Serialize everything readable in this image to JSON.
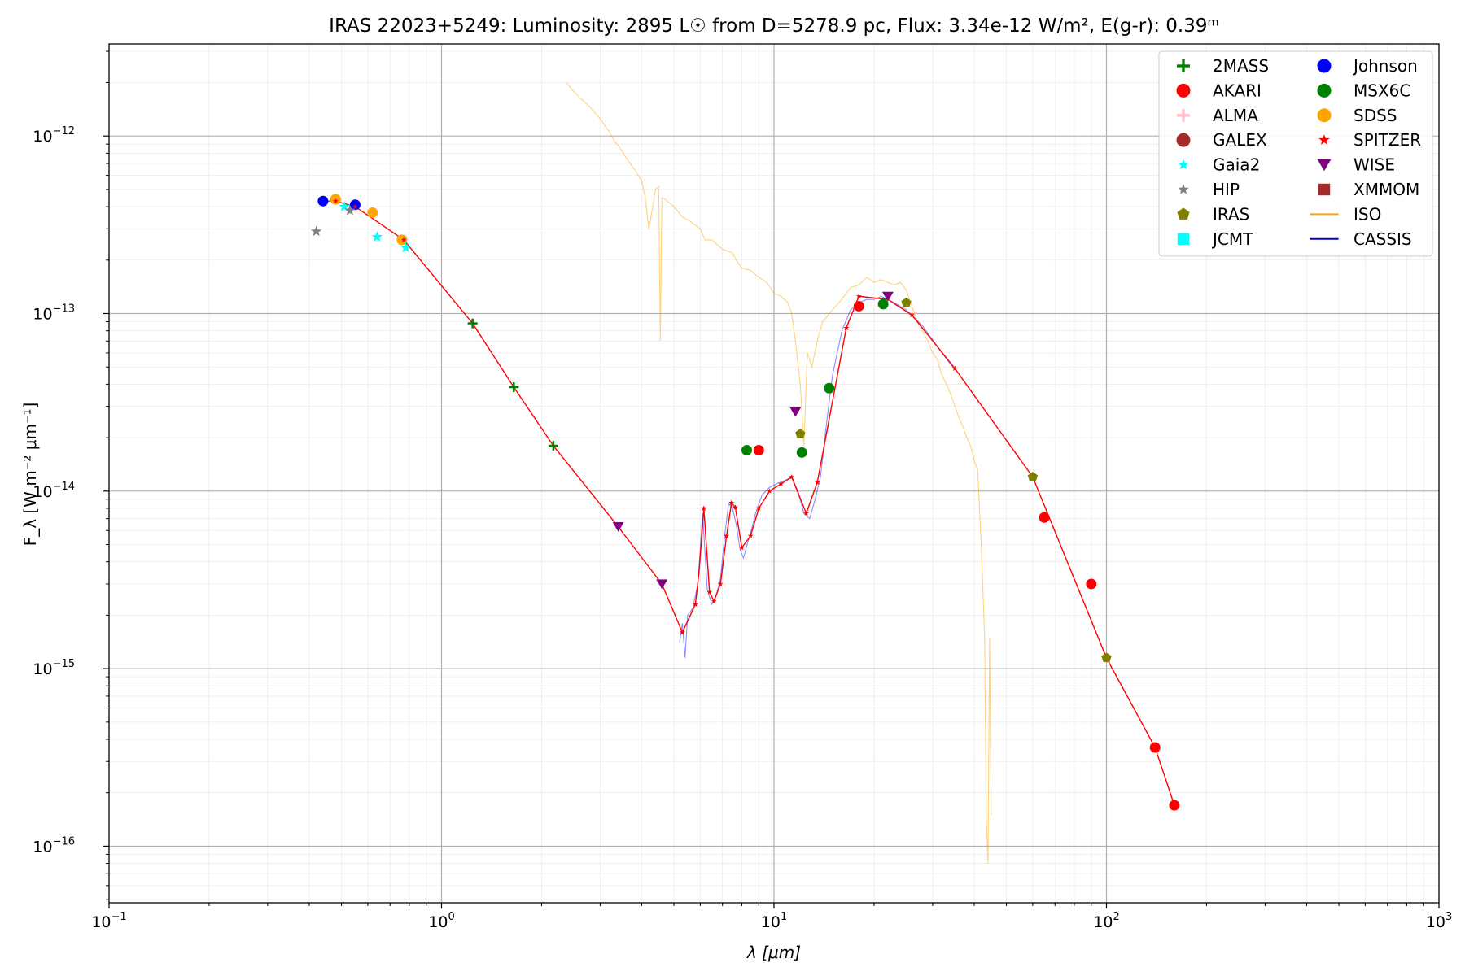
{
  "chart_data": {
    "type": "scatter",
    "title": "IRAS 22023+5249:  Luminosity: 2895 L☉ from D=5278.9 pc, Flux: 3.34e-12 W/m², E(g-r): 0.39ᵐ",
    "xlabel": "λ [μm]",
    "ylabel": "F_λ [W m⁻² μm⁻¹]",
    "xscale": "log",
    "yscale": "log",
    "xlim": [
      0.1,
      1000
    ],
    "ylim": [
      4.8e-17,
      3.3e-12
    ],
    "grid": true,
    "legend_position": "top-right",
    "xticks": [
      {
        "value": 0.1,
        "mantissa": "10",
        "exp": "−1"
      },
      {
        "value": 1,
        "mantissa": "10",
        "exp": "0"
      },
      {
        "value": 10,
        "mantissa": "10",
        "exp": "1"
      },
      {
        "value": 100,
        "mantissa": "10",
        "exp": "2"
      },
      {
        "value": 1000,
        "mantissa": "10",
        "exp": "3"
      }
    ],
    "yticks": [
      {
        "value": 1e-16,
        "mantissa": "10",
        "exp": "−16"
      },
      {
        "value": 1e-15,
        "mantissa": "10",
        "exp": "−15"
      },
      {
        "value": 1e-14,
        "mantissa": "10",
        "exp": "−14"
      },
      {
        "value": 1e-13,
        "mantissa": "10",
        "exp": "−13"
      },
      {
        "value": 1e-12,
        "mantissa": "10",
        "exp": "−12"
      }
    ],
    "legend": [
      {
        "name": "2MASS",
        "marker": "plus",
        "color": "#008000"
      },
      {
        "name": "Johnson",
        "marker": "circle",
        "color": "#0000ff"
      },
      {
        "name": "AKARI",
        "marker": "circle",
        "color": "#ff0000"
      },
      {
        "name": "MSX6C",
        "marker": "circle",
        "color": "#008000"
      },
      {
        "name": "ALMA",
        "marker": "plus",
        "color": "#ffc0cb"
      },
      {
        "name": "SDSS",
        "marker": "circle",
        "color": "#ffa500"
      },
      {
        "name": "GALEX",
        "marker": "circle",
        "color": "#a52a2a"
      },
      {
        "name": "SPITZER",
        "marker": "star",
        "color": "#ff0000"
      },
      {
        "name": "Gaia2",
        "marker": "star",
        "color": "#00ffff"
      },
      {
        "name": "WISE",
        "marker": "triangle_down",
        "color": "#800080"
      },
      {
        "name": "HIP",
        "marker": "star",
        "color": "#808080"
      },
      {
        "name": "XMMOM",
        "marker": "square",
        "color": "#a52a2a"
      },
      {
        "name": "IRAS",
        "marker": "pentagon",
        "color": "#808000"
      },
      {
        "name": "ISO",
        "marker": "line",
        "color": "#ffa500"
      },
      {
        "name": "JCMT",
        "marker": "square",
        "color": "#00ffff"
      },
      {
        "name": "CASSIS",
        "marker": "line",
        "color": "#0000cd"
      }
    ],
    "model_line": {
      "color": "#ff0000",
      "x": [
        0.44,
        0.48,
        0.55,
        0.77,
        1.24,
        1.65,
        2.17,
        3.4,
        4.6,
        5.3,
        5.8,
        5.95,
        6.15,
        6.4,
        6.6,
        6.9,
        7.2,
        7.45,
        7.65,
        8.0,
        8.5,
        9.0,
        9.7,
        10.5,
        11.3,
        12.5,
        13.5,
        16.5,
        18.0,
        22.0,
        26.0,
        35.0,
        60.0,
        100.0,
        140.0,
        160.0
      ],
      "y": [
        4.3e-13,
        4.3e-13,
        4e-13,
        2.6e-13,
        8.8e-14,
        3.85e-14,
        1.8e-14,
        6.3e-15,
        3e-15,
        1.6e-15,
        2.3e-15,
        3.5e-15,
        8e-15,
        2.7e-15,
        2.4e-15,
        3e-15,
        5.6e-15,
        8.6e-15,
        8.1e-15,
        4.8e-15,
        5.6e-15,
        8e-15,
        1e-14,
        1.1e-14,
        1.2e-14,
        7.5e-15,
        1.12e-14,
        8.3e-14,
        1.25e-13,
        1.2e-13,
        9.8e-14,
        4.9e-14,
        1.2e-14,
        1.15e-15,
        3.6e-16,
        1.7e-16
      ]
    },
    "spitzer_points": {
      "color": "#ff0000",
      "x": [
        0.48,
        0.55,
        0.77,
        5.3,
        5.8,
        6.15,
        6.4,
        6.6,
        6.9,
        7.2,
        7.45,
        7.65,
        8.0,
        8.5,
        9.0,
        9.7,
        10.5,
        11.3,
        12.5,
        13.5,
        16.5,
        18.0,
        26.0,
        35.0
      ],
      "y": [
        4.3e-13,
        4e-13,
        2.6e-13,
        1.6e-15,
        2.3e-15,
        8e-15,
        2.7e-15,
        2.4e-15,
        3e-15,
        5.6e-15,
        8.6e-15,
        8.1e-15,
        4.8e-15,
        5.6e-15,
        8e-15,
        1e-14,
        1.1e-14,
        1.2e-14,
        7.5e-15,
        1.12e-14,
        8.3e-14,
        1.25e-13,
        9.8e-14,
        4.9e-14
      ]
    },
    "photometry": [
      {
        "name": "2MASS",
        "marker": "plus",
        "color": "#008000",
        "x": [
          1.24,
          1.65,
          2.17
        ],
        "y": [
          8.8e-14,
          3.85e-14,
          1.8e-14
        ]
      },
      {
        "name": "Johnson",
        "marker": "circle",
        "color": "#0000ff",
        "x": [
          0.44,
          0.55
        ],
        "y": [
          4.3e-13,
          4.1e-13
        ]
      },
      {
        "name": "AKARI",
        "marker": "circle",
        "color": "#ff0000",
        "x": [
          9.0,
          18.0,
          65.0,
          90.0,
          140.0,
          160.0
        ],
        "y": [
          1.7e-14,
          1.1e-13,
          7.1e-15,
          3e-15,
          3.6e-16,
          1.7e-16
        ]
      },
      {
        "name": "MSX6C",
        "marker": "circle",
        "color": "#008000",
        "x": [
          8.28,
          12.13,
          14.65,
          21.3
        ],
        "y": [
          1.7e-14,
          1.65e-14,
          3.8e-14,
          1.13e-13
        ]
      },
      {
        "name": "SDSS",
        "marker": "circle",
        "color": "#ffa500",
        "x": [
          0.48,
          0.62,
          0.76
        ],
        "y": [
          4.4e-13,
          3.7e-13,
          2.6e-13
        ]
      },
      {
        "name": "Gaia2",
        "marker": "star",
        "color": "#00ffff",
        "x": [
          0.51,
          0.64,
          0.78
        ],
        "y": [
          4e-13,
          2.7e-13,
          2.35e-13
        ]
      },
      {
        "name": "HIP",
        "marker": "star",
        "color": "#808080",
        "x": [
          0.42,
          0.53
        ],
        "y": [
          2.9e-13,
          3.8e-13
        ]
      },
      {
        "name": "WISE",
        "marker": "triangle_down",
        "color": "#800080",
        "x": [
          3.4,
          4.6,
          11.6,
          22.0
        ],
        "y": [
          6.3e-15,
          3e-15,
          2.8e-14,
          1.25e-13
        ]
      },
      {
        "name": "IRAS",
        "marker": "pentagon",
        "color": "#808000",
        "x": [
          12.0,
          25.0,
          60.0,
          100.0
        ],
        "y": [
          2.1e-14,
          1.15e-13,
          1.2e-14,
          1.15e-15
        ]
      }
    ],
    "iso_spectrum": {
      "color": "#ffa500",
      "x": [
        2.38,
        2.45,
        2.6,
        2.8,
        3.0,
        3.2,
        3.3,
        3.45,
        3.6,
        3.8,
        4.0,
        4.1,
        4.2,
        4.3,
        4.4,
        4.5,
        4.55,
        4.6,
        4.7,
        5.0,
        5.3,
        5.6,
        6.0,
        6.2,
        6.5,
        7.0,
        7.5,
        7.7,
        8.0,
        8.5,
        9.0,
        9.5,
        10.0,
        10.5,
        11.0,
        11.3,
        11.6,
        12.0,
        12.3,
        12.6,
        13.0,
        13.5,
        14.0,
        15.0,
        16.0,
        17.0,
        18.0,
        19.0,
        20.0,
        21.0,
        22.0,
        23.0,
        24.0,
        25.0,
        26.0,
        27.0,
        28.0,
        29.0,
        30.0,
        31.0,
        32.0,
        33.0,
        34.0,
        35.0,
        36.0,
        37.0,
        38.0,
        39.0,
        40.0,
        41.0,
        42.0,
        43.0,
        43.5,
        44.0,
        44.5,
        45.0
      ],
      "y": [
        2e-12,
        1.85e-12,
        1.65e-12,
        1.45e-12,
        1.25e-12,
        1.05e-12,
        9.5e-13,
        8.5e-13,
        7.5e-13,
        6.5e-13,
        5.6e-13,
        4.5e-13,
        3e-13,
        3.8e-13,
        5e-13,
        5.2e-13,
        7e-14,
        4.5e-13,
        4.4e-13,
        4e-13,
        3.5e-13,
        3.3e-13,
        3e-13,
        2.6e-13,
        2.6e-13,
        2.3e-13,
        2.2e-13,
        2e-13,
        1.8e-13,
        1.75e-13,
        1.6e-13,
        1.5e-13,
        1.3e-13,
        1.25e-13,
        1.15e-13,
        1e-13,
        7e-14,
        4e-14,
        1.8e-14,
        6e-14,
        5e-14,
        7e-14,
        9e-14,
        1.05e-13,
        1.2e-13,
        1.4e-13,
        1.45e-13,
        1.6e-13,
        1.5e-13,
        1.55e-13,
        1.5e-13,
        1.45e-13,
        1.5e-13,
        1.35e-13,
        1.1e-13,
        9e-14,
        8e-14,
        7e-14,
        6e-14,
        5.5e-14,
        4.5e-14,
        4e-14,
        3.5e-14,
        3e-14,
        2.6e-14,
        2.3e-14,
        2e-14,
        1.8e-14,
        1.5e-14,
        1.3e-14,
        5e-15,
        1.5e-15,
        1.5e-16,
        8e-17,
        1.5e-15,
        1.5e-16
      ]
    },
    "cassis_spectrum": {
      "color": "#0000ff",
      "x": [
        5.2,
        5.3,
        5.4,
        5.5,
        5.7,
        5.9,
        6.1,
        6.3,
        6.5,
        6.7,
        6.9,
        7.1,
        7.3,
        7.5,
        7.7,
        7.9,
        8.1,
        8.3,
        8.5,
        8.8,
        9.2,
        9.7,
        10.2,
        10.8,
        11.3,
        11.8,
        12.3,
        12.8,
        13.3,
        13.8,
        14.3,
        15.0,
        16.0,
        17.0,
        18.0,
        19.0,
        20.0,
        21.0,
        22.0,
        23.0,
        25.0,
        28.0,
        32.0,
        35.0
      ],
      "y": [
        1.4e-15,
        1.8e-15,
        1.15e-15,
        2e-15,
        2.2e-15,
        3e-15,
        7.5e-15,
        2.8e-15,
        2.3e-15,
        2.6e-15,
        3.2e-15,
        5.5e-15,
        8.5e-15,
        8e-15,
        6.5e-15,
        4.7e-15,
        4.2e-15,
        5e-15,
        5.8e-15,
        7.5e-15,
        9.5e-15,
        1.05e-14,
        1.1e-14,
        1.15e-14,
        1.2e-14,
        1e-14,
        7.5e-15,
        7e-15,
        9e-15,
        1.2e-14,
        2.2e-14,
        4.5e-14,
        8e-14,
        1.05e-13,
        1.15e-13,
        1.2e-13,
        1.2e-13,
        1.25e-13,
        1.2e-13,
        1.15e-13,
        1.05e-13,
        8.5e-14,
        6e-14,
        4.8e-14
      ]
    }
  }
}
